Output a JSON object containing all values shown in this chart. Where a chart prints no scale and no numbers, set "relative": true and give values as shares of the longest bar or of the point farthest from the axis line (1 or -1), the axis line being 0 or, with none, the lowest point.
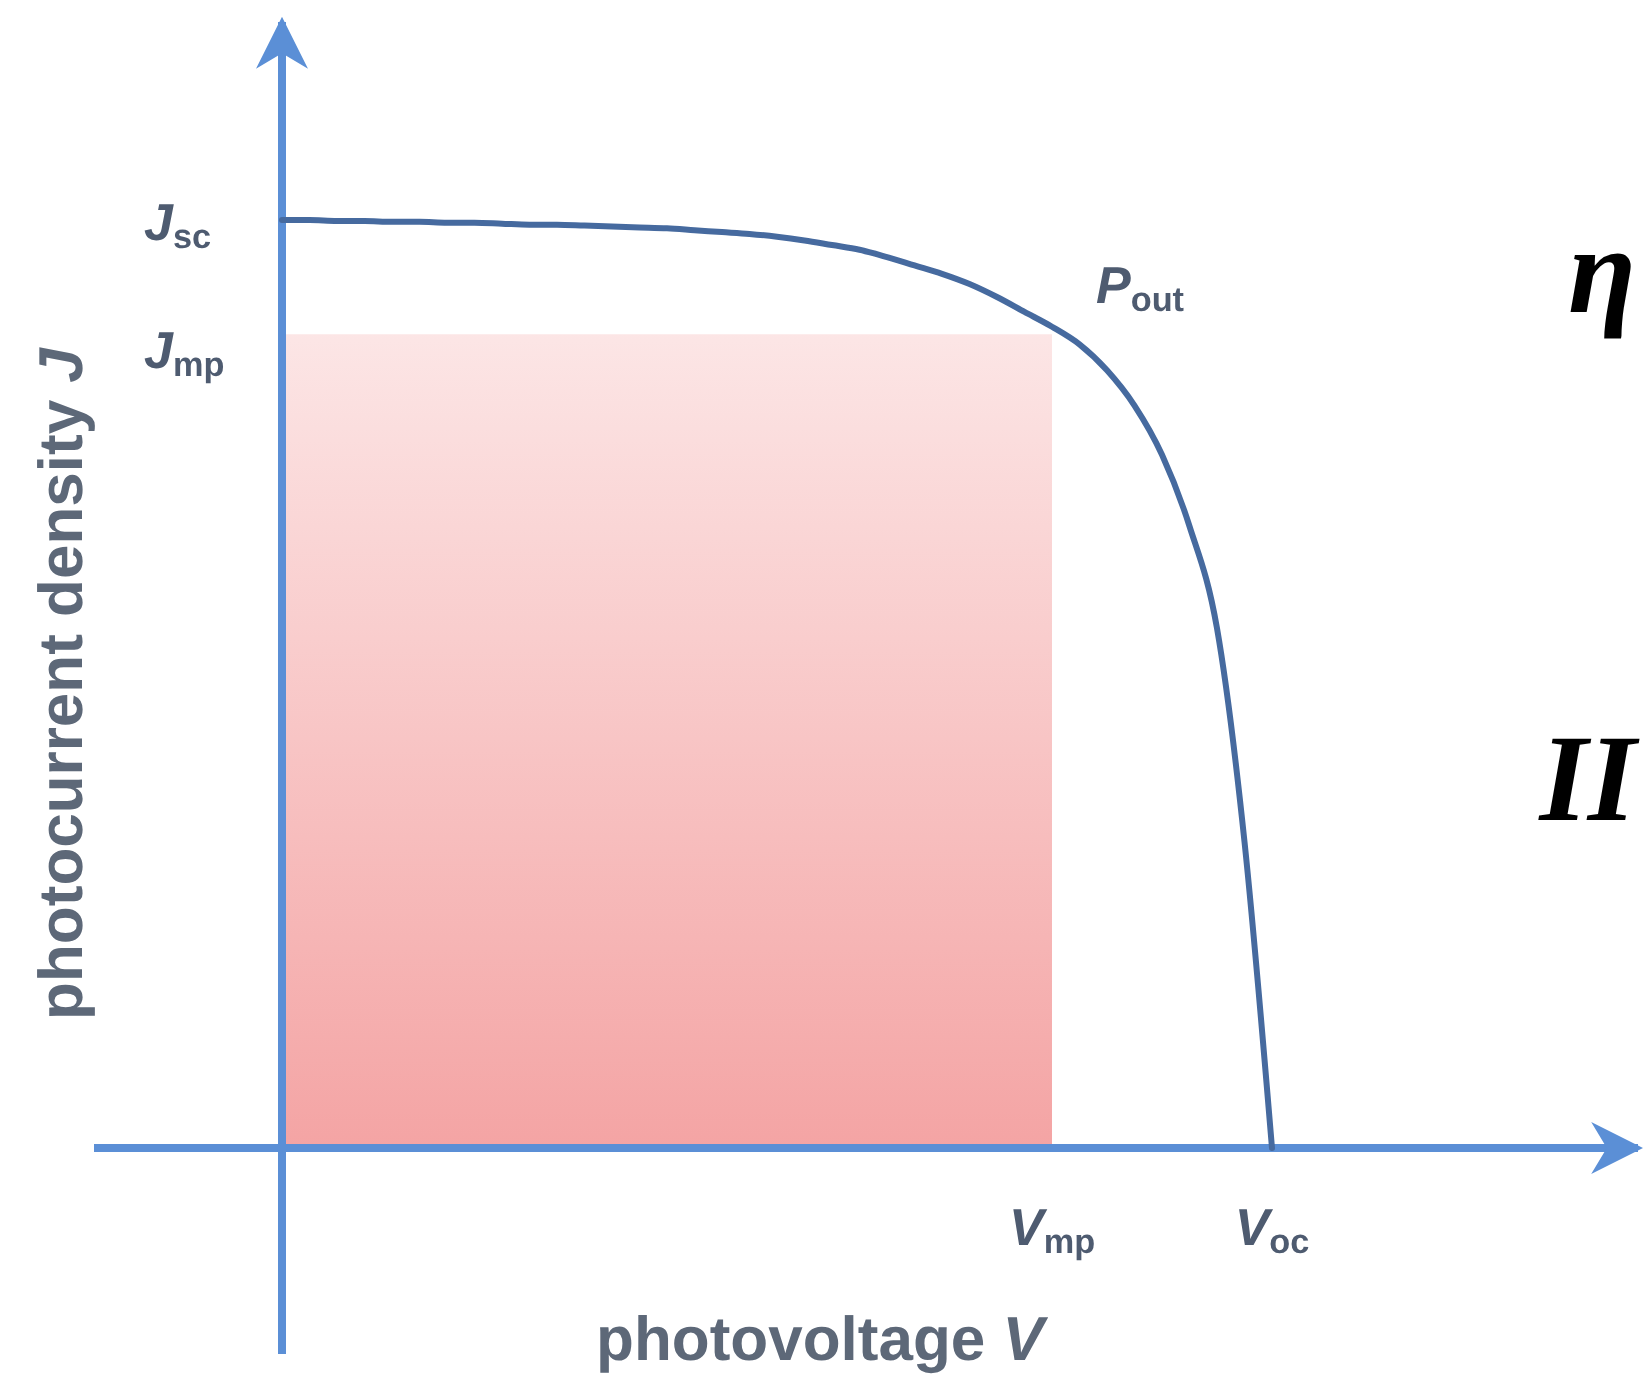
{
  "chart_data": {
    "type": "line",
    "relative": true,
    "xlabel": "photovoltage V",
    "ylabel": "photocurrent density J",
    "categories": [
      null,
      null,
      null,
      null,
      null,
      null,
      null,
      null,
      null,
      null,
      null,
      null,
      null,
      null,
      null,
      null,
      null,
      null,
      null,
      null,
      null,
      null,
      null,
      null,
      null,
      null,
      null,
      null,
      "V$_{mp}$",
      null,
      null,
      null,
      null,
      null,
      null,
      null,
      "V$_{oc}$"
    ],
    "series": [
      {
        "type": "area",
        "color": "#f4a4a4",
        "values": [
          0.877,
          0.877,
          0.877,
          0.877,
          0.877,
          0.877,
          0.877,
          0.877,
          0.877,
          0.877,
          0.877,
          0.877,
          0.877,
          0.877,
          0.877,
          0.877,
          0.877,
          0.877,
          0.877,
          0.877,
          0.877,
          0.877,
          0.877,
          0.877,
          0.877,
          0.877,
          0.877,
          0.877,
          0.877,
          null,
          null,
          null,
          null,
          null,
          null,
          null,
          null
        ]
      },
      {
        "type": "line",
        "color": "#466a9f",
        "values": [
          1,
          1,
          0.999,
          0.999,
          0.998,
          0.998,
          0.997,
          0.997,
          0.996,
          0.995,
          0.995,
          0.994,
          0.993,
          0.992,
          0.991,
          0.989,
          0.987,
          0.985,
          0.982,
          0.978,
          0.973,
          0.968,
          0.96,
          0.951,
          0.942,
          0.931,
          0.917,
          0.901,
          0.885,
          0.866,
          0.838,
          0.8,
          0.747,
          0.67,
          0.56,
          0.33,
          0
        ]
      }
    ],
    "annotations": [
      "J$_{sc}$",
      "J$_{mp}$",
      {
        "text": "P$_{out}$",
        "x": "V$_{mp}$",
        "y": 0.885
      },
      "η",
      "II"
    ]
  }
}
